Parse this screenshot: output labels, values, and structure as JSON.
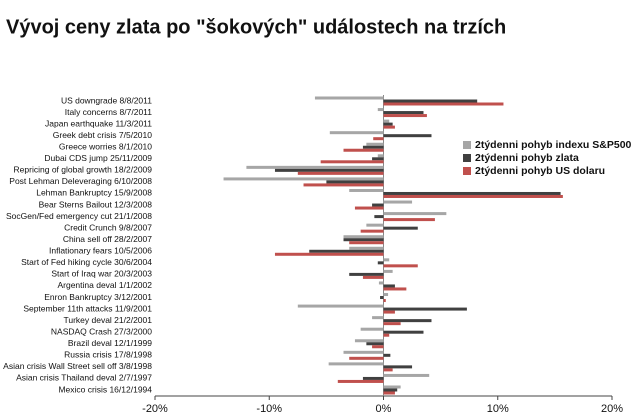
{
  "chart_data": {
    "type": "hbar",
    "title": "Vývoj ceny zlata po \"šokových\" událostech na trzích",
    "categories": [
      "US downgrade 8/8/2011",
      "Italy concerns 8/7/2011",
      "Japan earthquake 11/3/2011",
      "Greek debt crisis 7/5/2010",
      "Greece worries 8/1/2010",
      "Dubai CDS jump 25/11/2009",
      "Repricing of global growth 18/2/2009",
      "Post Lehman Deleveraging 6/10/2008",
      "Lehman Bankruptcy 15/9/2008",
      "Bear Sterns Bailout 12/3/2008",
      "SocGen/Fed emergency cut 21/1/2008",
      "Credit Crunch 9/8/2007",
      "China sell off 28/2/2007",
      "Inflationary fears 10/5/2006",
      "Start of Fed hiking cycle 30/6/2004",
      "Start of Iraq war 20/3/2003",
      "Argentina deval 1/1/2002",
      "Enron Bankruptcy 3/12/2001",
      "September 11th attacks 11/9/2001",
      "Turkey deval 21/2/2001",
      "NASDAQ Crash 27/3/2000",
      "Brazil deval 12/1/1999",
      "Russia crisis 17/8/1998",
      "Asian crisis Wall Street sell off 3/8/1998",
      "Asian crisis Thailand deval 2/7/1997",
      "Mexico crisis 16/12/1994"
    ],
    "series": [
      {
        "name": "2týdenni pohyb indexu S&P500",
        "color": "#a6a6a6",
        "values": [
          -6,
          -0.5,
          0.5,
          -4.7,
          -1.5,
          -0.5,
          -12,
          -14,
          -3,
          2.5,
          5.5,
          -1.5,
          -3.5,
          -3,
          0.5,
          0.8,
          -0.4,
          0.4,
          -7.5,
          -1,
          -2,
          -2.5,
          -3.5,
          -4.8,
          4,
          1.5
        ]
      },
      {
        "name": "2týdenni pohyb zlata",
        "color": "#404040",
        "values": [
          8.2,
          3.5,
          0.8,
          4.2,
          -1.8,
          -1,
          -9.5,
          -5,
          15.5,
          -1,
          -0.8,
          3,
          -3.5,
          -6.5,
          -0.5,
          -3,
          1,
          -0.3,
          7.3,
          4.2,
          3.5,
          -1.5,
          0.6,
          2.5,
          -1.8,
          1.2
        ]
      },
      {
        "name": "2týdenni pohyb US dolaru",
        "color": "#c0504d",
        "values": [
          10.5,
          3.8,
          1,
          -0.9,
          -3.5,
          -5.5,
          -7.5,
          -7,
          15.7,
          -2.5,
          4.5,
          -2,
          -3,
          -9.5,
          3,
          -1.8,
          2,
          0.2,
          1,
          1.5,
          0.5,
          -1,
          -3,
          0.8,
          -4,
          1
        ]
      }
    ],
    "xlim": [
      -20,
      20
    ],
    "xticks": [
      {
        "value": -20,
        "label": "-20%"
      },
      {
        "value": -10,
        "label": "-10%"
      },
      {
        "value": 0,
        "label": "0%"
      },
      {
        "value": 10,
        "label": "10%"
      },
      {
        "value": 20,
        "label": "20%"
      }
    ]
  }
}
